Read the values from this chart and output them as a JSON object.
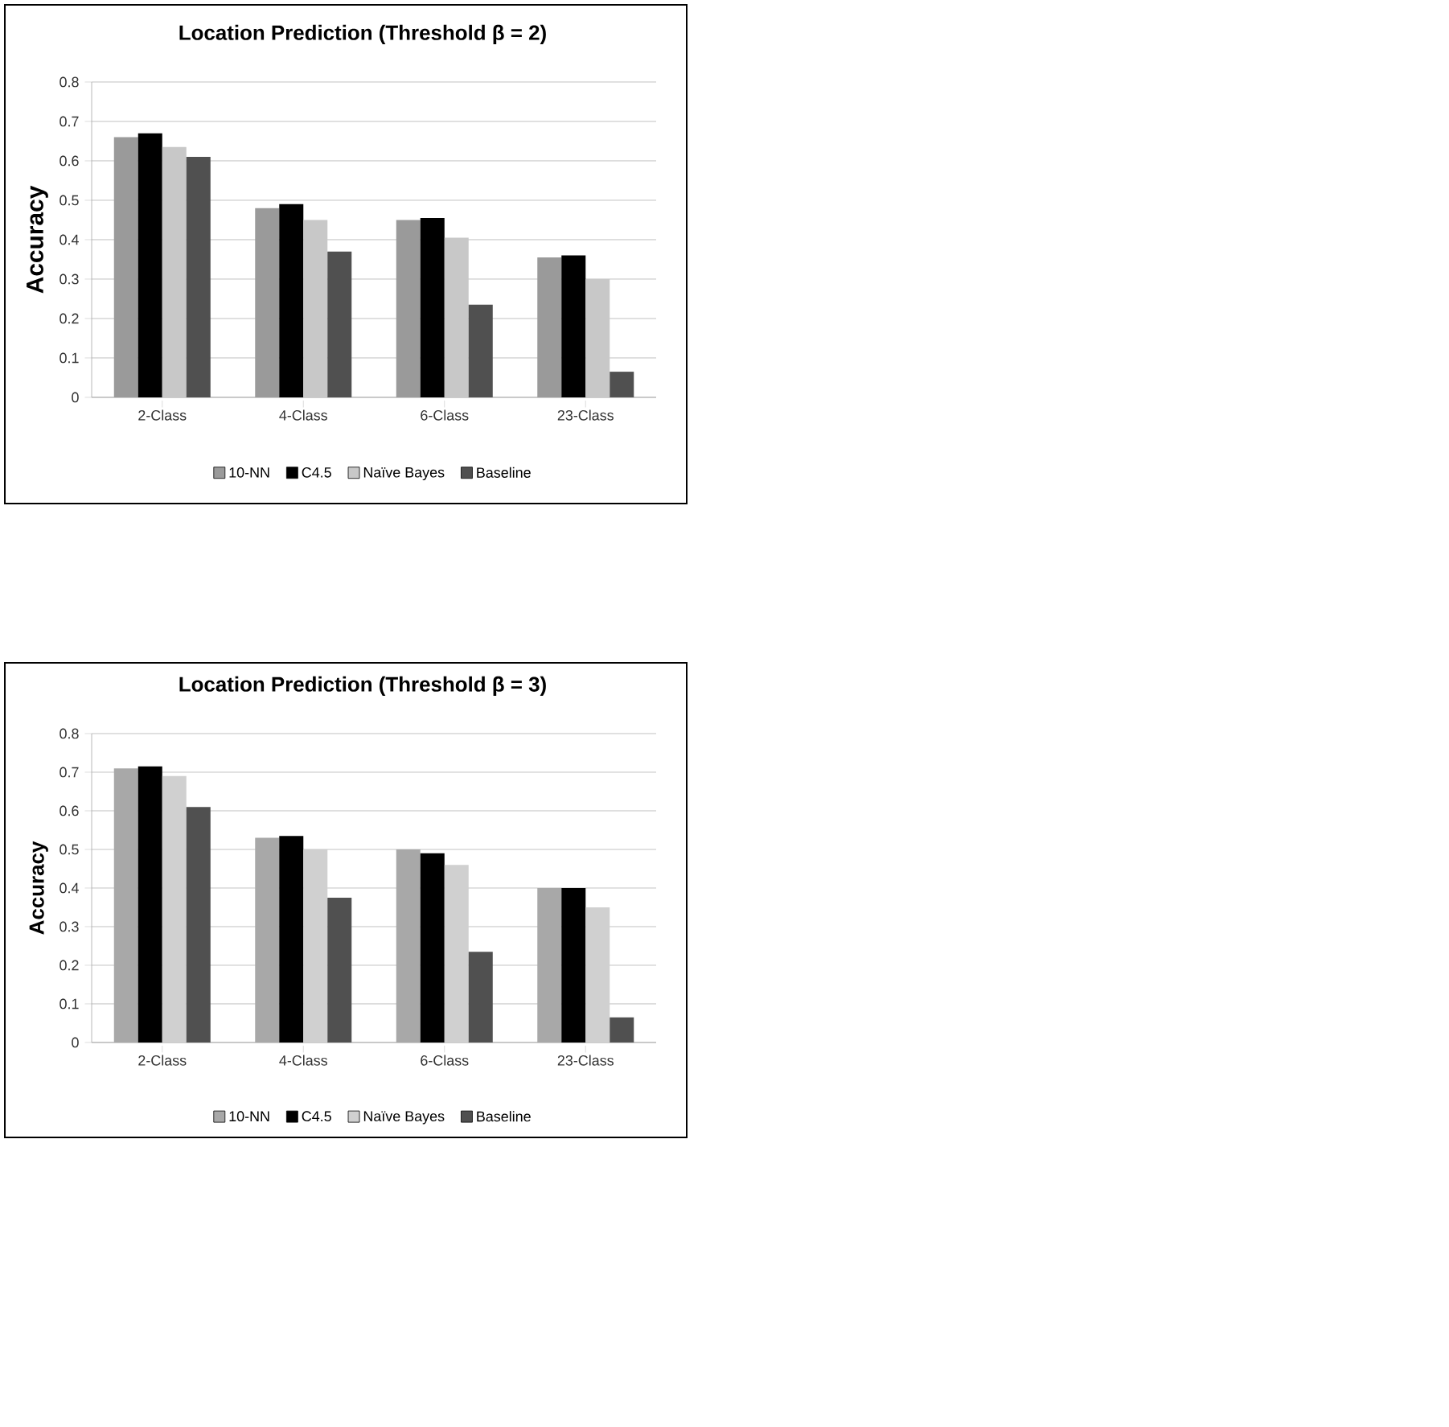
{
  "chart_data": [
    {
      "type": "bar",
      "title": "Location Prediction  (Threshold β = 2)",
      "ylabel": "Accuracy",
      "categories": [
        "2-Class",
        "4-Class",
        "6-Class",
        "23-Class"
      ],
      "series": [
        {
          "name": "10-NN",
          "color": "#9a9a9a",
          "values": [
            0.66,
            0.48,
            0.45,
            0.355
          ]
        },
        {
          "name": "C4.5",
          "color": "#000000",
          "values": [
            0.67,
            0.49,
            0.455,
            0.36
          ]
        },
        {
          "name": "Naïve Bayes",
          "color": "#c8c8c8",
          "values": [
            0.635,
            0.45,
            0.405,
            0.3
          ]
        },
        {
          "name": "Baseline",
          "color": "#505050",
          "values": [
            0.61,
            0.37,
            0.235,
            0.065
          ]
        }
      ],
      "ylim": [
        0,
        0.8
      ],
      "yticks": [
        0,
        0.1,
        0.2,
        0.3,
        0.4,
        0.5,
        0.6,
        0.7,
        0.8
      ],
      "grid": "y",
      "legend": "bottom"
    },
    {
      "type": "bar",
      "title": "Location Prediction  (Threshold β = 3)",
      "ylabel": "Accuracy",
      "categories": [
        "2-Class",
        "4-Class",
        "6-Class",
        "23-Class"
      ],
      "series": [
        {
          "name": "10-NN",
          "color": "#a8a8a8",
          "values": [
            0.71,
            0.53,
            0.5,
            0.4
          ]
        },
        {
          "name": "C4.5",
          "color": "#000000",
          "values": [
            0.715,
            0.535,
            0.49,
            0.4
          ]
        },
        {
          "name": "Naïve Bayes",
          "color": "#d0d0d0",
          "values": [
            0.69,
            0.5,
            0.46,
            0.35
          ]
        },
        {
          "name": "Baseline",
          "color": "#505050",
          "values": [
            0.61,
            0.375,
            0.235,
            0.065
          ]
        }
      ],
      "ylim": [
        0,
        0.8
      ],
      "yticks": [
        0,
        0.1,
        0.2,
        0.3,
        0.4,
        0.5,
        0.6,
        0.7,
        0.8
      ],
      "grid": "y",
      "legend": "bottom"
    }
  ]
}
